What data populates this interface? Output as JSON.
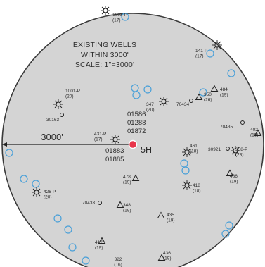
{
  "map": {
    "title": [
      "EXISTING WELLS",
      "WITHIN 3000'",
      "SCALE: 1\"=3000'"
    ],
    "radius_label": "3000'",
    "subject_well": "5H",
    "subject_marker_color": "#e8354b",
    "circle_fill": "#d4d4d4",
    "blue_marker_color": "#4aa0d8",
    "center_labels": [
      "01586",
      "01288",
      "01872",
      "01883",
      "01885"
    ],
    "wells": [
      {
        "id": "w1",
        "symbol": "star",
        "label": [
          "1003-P",
          "(17)"
        ]
      },
      {
        "id": "w2",
        "symbol": "star",
        "label": [
          "141-P",
          "(17)"
        ]
      },
      {
        "id": "w3",
        "symbol": "star",
        "label": [
          "1001-P",
          "(20)"
        ]
      },
      {
        "id": "w4",
        "symbol": "circle",
        "label": [
          "30163"
        ]
      },
      {
        "id": "w5",
        "symbol": "star",
        "label": [
          "347",
          "(20)"
        ]
      },
      {
        "id": "w6",
        "symbol": "circle",
        "label": [
          "70434"
        ]
      },
      {
        "id": "w7",
        "symbol": "triangle",
        "label": [
          "350",
          "(26)"
        ]
      },
      {
        "id": "w8",
        "symbol": "triangle",
        "label": [
          "484",
          "(19)"
        ]
      },
      {
        "id": "w9",
        "symbol": "circle",
        "label": [
          "70435"
        ]
      },
      {
        "id": "w10",
        "symbol": "triangle",
        "label": [
          "402",
          "(19)"
        ]
      },
      {
        "id": "w11",
        "symbol": "star",
        "label": [
          "431-P",
          "(17)"
        ]
      },
      {
        "id": "w12",
        "symbol": "star",
        "label": [
          "461",
          "(18)"
        ]
      },
      {
        "id": "w13",
        "symbol": "circle",
        "label": [
          "30921"
        ]
      },
      {
        "id": "w14",
        "symbol": "star",
        "label": [
          "358-P",
          "(23)"
        ]
      },
      {
        "id": "w15",
        "symbol": "triangle",
        "label": [
          "486",
          "(19)"
        ]
      },
      {
        "id": "w16",
        "symbol": "triangle",
        "label": [
          "478",
          "(19)"
        ]
      },
      {
        "id": "w17",
        "symbol": "star",
        "label": [
          "426-P",
          "(20)"
        ]
      },
      {
        "id": "w18",
        "symbol": "circle",
        "label": [
          "70433"
        ]
      },
      {
        "id": "w19",
        "symbol": "triangle",
        "label": [
          "348",
          "(19)"
        ]
      },
      {
        "id": "w20",
        "symbol": "star",
        "label": [
          "418",
          "(18)"
        ]
      },
      {
        "id": "w21",
        "symbol": "triangle",
        "label": [
          "435",
          "(19)"
        ]
      },
      {
        "id": "w22",
        "symbol": "triangle",
        "label": [
          "417",
          "(19)"
        ]
      },
      {
        "id": "w23",
        "symbol": "none",
        "label": [
          "322",
          "(16)"
        ]
      },
      {
        "id": "w24",
        "symbol": "triangle",
        "label": [
          "436",
          "(19)"
        ]
      }
    ]
  }
}
